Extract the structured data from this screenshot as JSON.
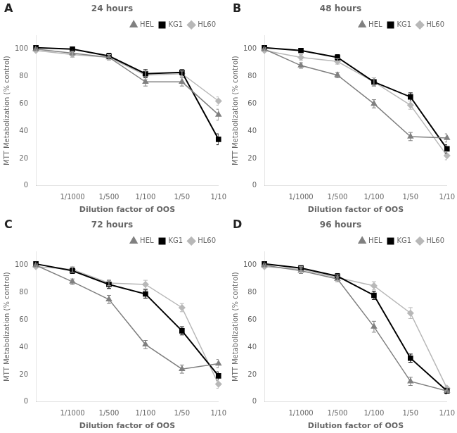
{
  "chart_data": [
    {
      "type": "line",
      "title": "24 hours",
      "annotations": [
        "A"
      ],
      "xlabel": "Dilution factor of OOS",
      "ylabel": "MTT Metabolization (% control)",
      "categories": [
        null,
        "1/1000",
        "1/500",
        "1/100",
        "1/50",
        "1/10"
      ],
      "series": [
        {
          "name": "HEL",
          "color": "#808080",
          "marker": "triangle",
          "values": [
            100,
            97,
            94,
            76,
            76,
            52
          ],
          "errors": [
            1,
            2,
            2,
            3,
            3,
            4
          ]
        },
        {
          "name": "KG1",
          "color": "#000000",
          "marker": "square",
          "values": [
            101,
            100,
            95,
            82,
            83,
            34
          ],
          "errors": [
            1,
            1,
            2,
            3,
            2,
            4
          ]
        },
        {
          "name": "HL60",
          "color": "#b8b8b8",
          "marker": "diamond",
          "values": [
            99,
            96,
            94,
            81,
            82,
            62
          ],
          "errors": [
            1,
            2,
            2,
            3,
            2,
            3
          ]
        }
      ],
      "ylim": [
        0,
        110
      ],
      "yticks": [
        0,
        20,
        40,
        60,
        80,
        100
      ],
      "grid": false,
      "legend": "upper right"
    },
    {
      "type": "line",
      "title": "48 hours",
      "annotations": [
        "B"
      ],
      "xlabel": "Dilution factor of OOS",
      "ylabel": "MTT Metabolization (% control)",
      "categories": [
        null,
        "1/1000",
        "1/500",
        "1/100",
        "1/50",
        "1/10"
      ],
      "series": [
        {
          "name": "HEL",
          "color": "#808080",
          "marker": "triangle",
          "values": [
            100,
            88,
            81,
            60,
            36,
            35
          ],
          "errors": [
            1,
            2,
            2,
            3,
            3,
            3
          ]
        },
        {
          "name": "KG1",
          "color": "#000000",
          "marker": "square",
          "values": [
            101,
            99,
            94,
            76,
            65,
            27
          ],
          "errors": [
            1,
            1,
            2,
            3,
            3,
            3
          ]
        },
        {
          "name": "HL60",
          "color": "#b8b8b8",
          "marker": "diamond",
          "values": [
            99,
            94,
            91,
            76,
            59,
            22
          ],
          "errors": [
            1,
            2,
            2,
            3,
            3,
            3
          ]
        }
      ],
      "ylim": [
        0,
        110
      ],
      "yticks": [
        0,
        20,
        40,
        60,
        80,
        100
      ],
      "grid": false,
      "legend": "upper right"
    },
    {
      "type": "line",
      "title": "72 hours",
      "annotations": [
        "C"
      ],
      "xlabel": "Dilution factor of OOS",
      "ylabel": "MTT Metabolization (% control)",
      "categories": [
        null,
        "1/1000",
        "1/500",
        "1/100",
        "1/50",
        "1/10"
      ],
      "series": [
        {
          "name": "HEL",
          "color": "#808080",
          "marker": "triangle",
          "values": [
            100,
            88,
            75,
            42,
            24,
            28
          ],
          "errors": [
            1,
            2,
            3,
            3,
            3,
            3
          ]
        },
        {
          "name": "KG1",
          "color": "#000000",
          "marker": "square",
          "values": [
            101,
            96,
            86,
            79,
            52,
            19
          ],
          "errors": [
            1,
            2,
            3,
            3,
            3,
            3
          ]
        },
        {
          "name": "HL60",
          "color": "#b8b8b8",
          "marker": "diamond",
          "values": [
            99,
            97,
            87,
            86,
            69,
            13
          ],
          "errors": [
            1,
            2,
            2,
            3,
            3,
            3
          ]
        }
      ],
      "ylim": [
        0,
        110
      ],
      "yticks": [
        0,
        20,
        40,
        60,
        80,
        100
      ],
      "grid": false,
      "legend": "upper right"
    },
    {
      "type": "line",
      "title": "96 hours",
      "annotations": [
        "D"
      ],
      "xlabel": "Dilution factor of OOS",
      "ylabel": "MTT Metabolization (% control)",
      "categories": [
        null,
        "1/1000",
        "1/500",
        "1/100",
        "1/50",
        "1/10"
      ],
      "series": [
        {
          "name": "HEL",
          "color": "#808080",
          "marker": "triangle",
          "values": [
            100,
            96,
            90,
            55,
            15,
            8
          ],
          "errors": [
            1,
            2,
            2,
            4,
            3,
            2
          ]
        },
        {
          "name": "KG1",
          "color": "#000000",
          "marker": "square",
          "values": [
            101,
            98,
            92,
            78,
            32,
            8
          ],
          "errors": [
            1,
            1,
            2,
            3,
            3,
            2
          ]
        },
        {
          "name": "HL60",
          "color": "#b8b8b8",
          "marker": "diamond",
          "values": [
            99,
            97,
            91,
            85,
            65,
            10
          ],
          "errors": [
            1,
            2,
            2,
            3,
            4,
            2
          ]
        }
      ],
      "ylim": [
        0,
        110
      ],
      "yticks": [
        0,
        20,
        40,
        60,
        80,
        100
      ],
      "grid": false,
      "legend": "upper right"
    }
  ]
}
